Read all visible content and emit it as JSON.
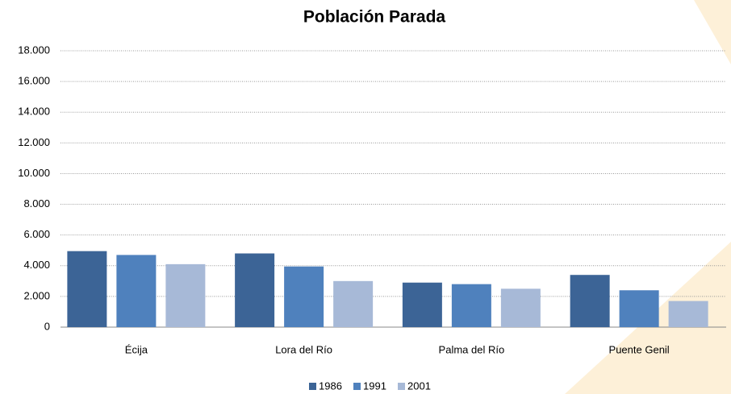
{
  "chart_data": {
    "type": "bar",
    "title": "Población Parada",
    "categories": [
      "Écija",
      "Lora del Río",
      "Palma del Río",
      "Puente Genil"
    ],
    "series": [
      {
        "name": "1986",
        "color": "#3c6496",
        "values": [
          4950,
          4800,
          2900,
          3400
        ]
      },
      {
        "name": "1991",
        "color": "#4f81bd",
        "values": [
          4700,
          3950,
          2800,
          2400
        ]
      },
      {
        "name": "2001",
        "color": "#a7b9d7",
        "values": [
          4100,
          3000,
          2500,
          1700
        ]
      }
    ],
    "ylim": [
      0,
      18000
    ],
    "yticks": [
      0,
      {
        "value": 2000,
        "label": "2.000"
      },
      {
        "value": 4000,
        "label": "4.000"
      },
      {
        "value": 6000,
        "label": "6.000"
      },
      {
        "value": 8000,
        "label": "8.000"
      },
      {
        "value": 10000,
        "label": "10.000"
      },
      {
        "value": 12000,
        "label": "12.000"
      },
      {
        "value": 14000,
        "label": "14.000"
      },
      {
        "value": 16000,
        "label": "16.000"
      },
      {
        "value": 18000,
        "label": "18.000"
      }
    ],
    "grid": true,
    "legend": "bottom"
  }
}
